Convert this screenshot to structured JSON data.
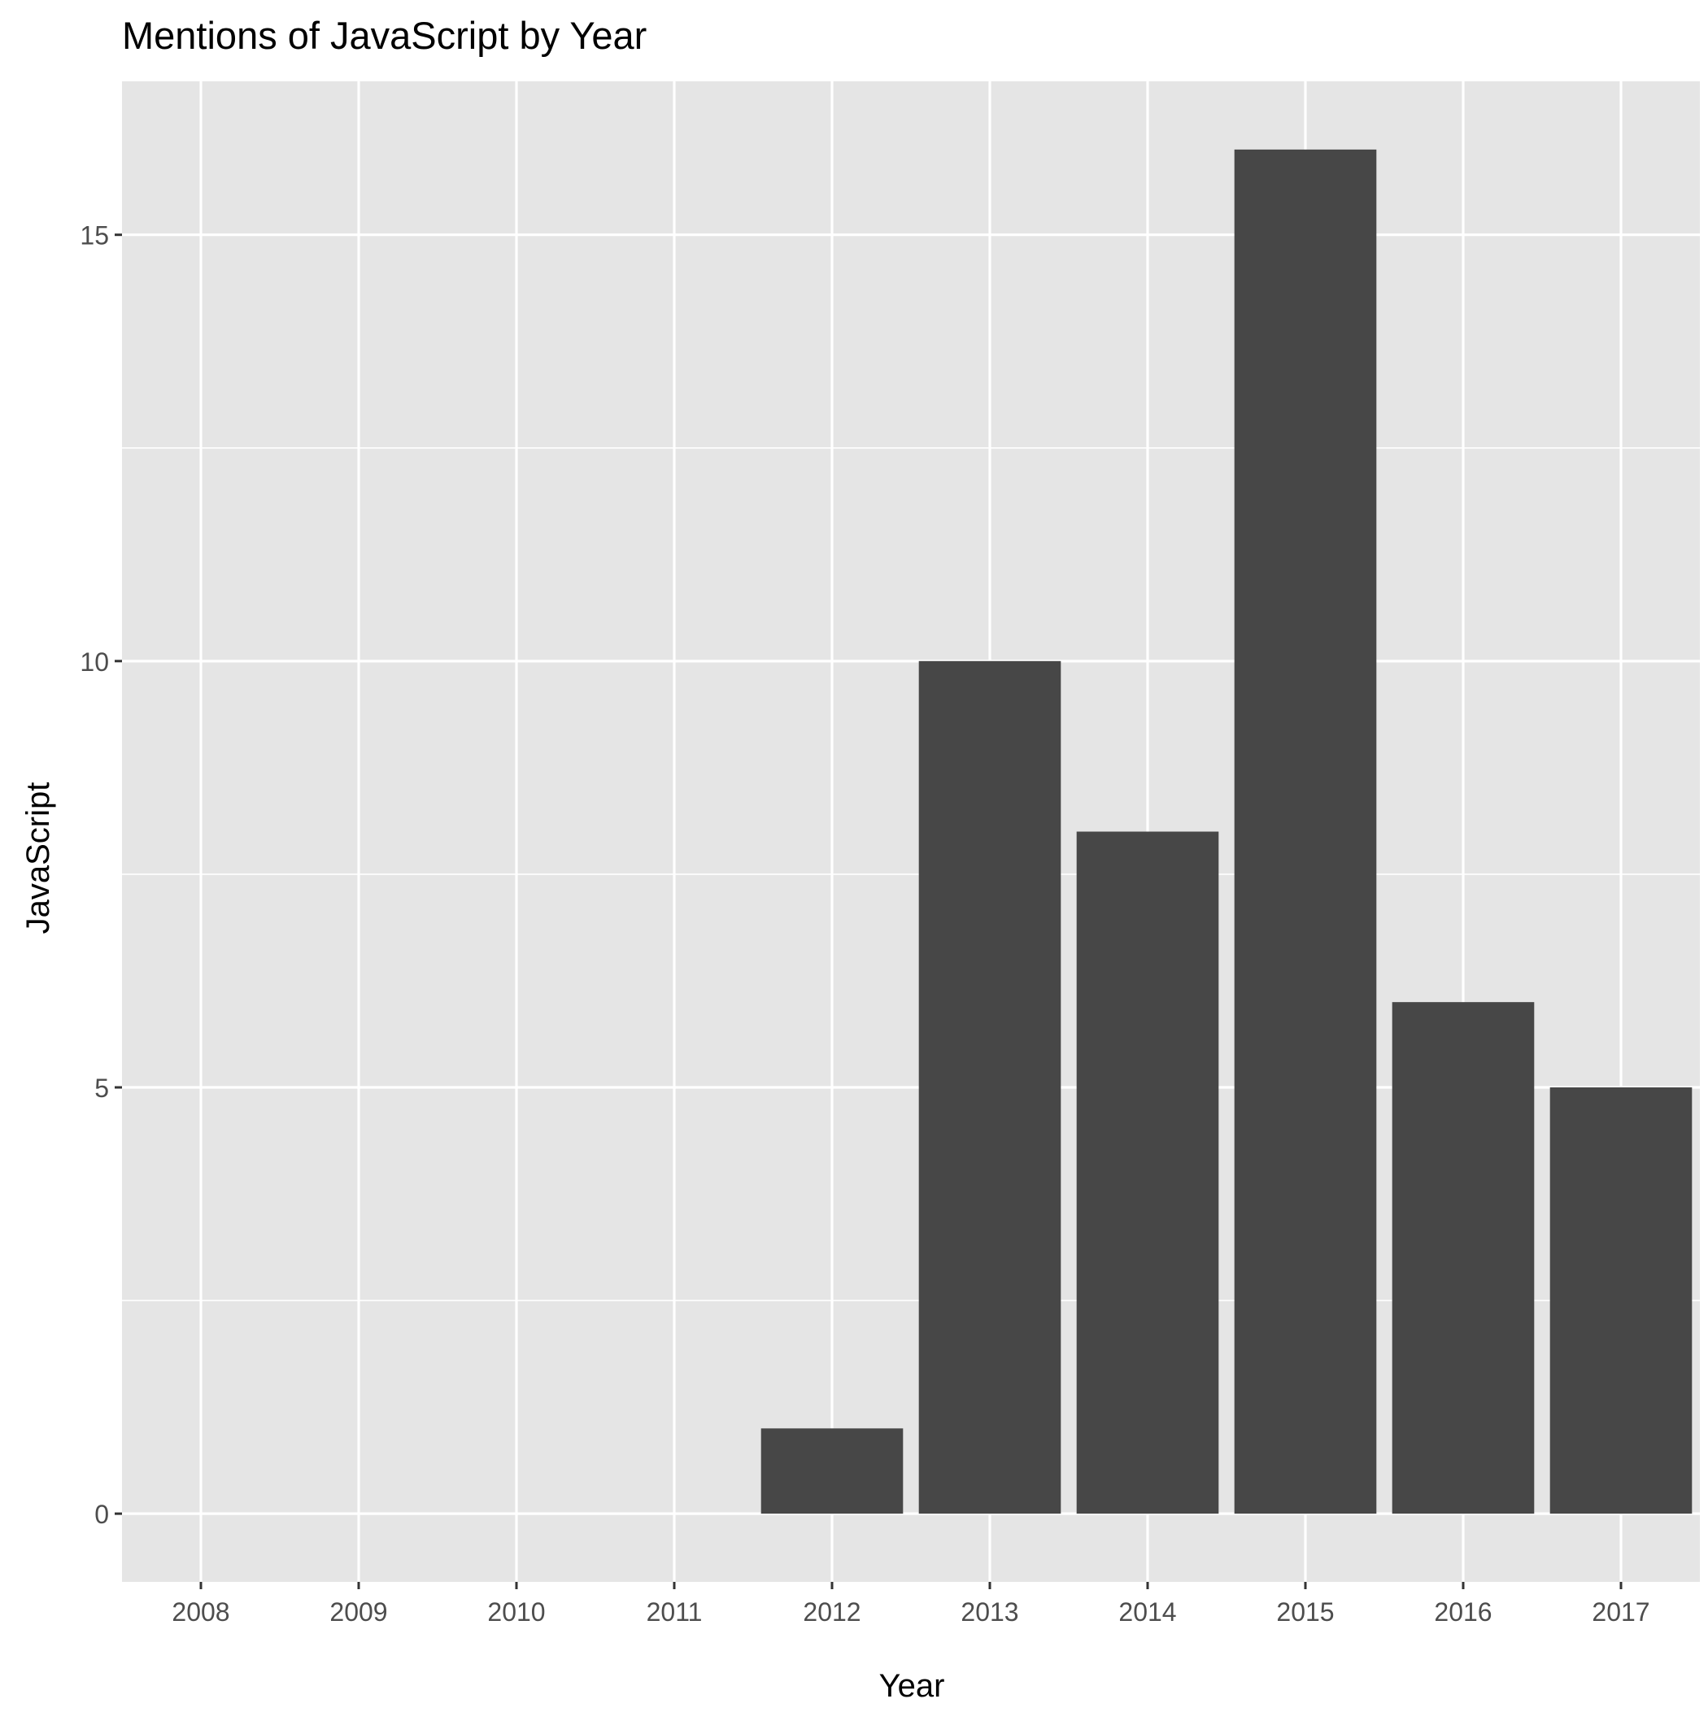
{
  "chart_data": {
    "type": "bar",
    "title": "Mentions of JavaScript by Year",
    "xlabel": "Year",
    "ylabel": "JavaScript",
    "categories": [
      "2008",
      "2009",
      "2010",
      "2011",
      "2012",
      "2013",
      "2014",
      "2015",
      "2016",
      "2017"
    ],
    "values": [
      0,
      0,
      0,
      0,
      1,
      10,
      8,
      16,
      6,
      5
    ],
    "ylim": [
      -0.8,
      16.8
    ],
    "yticks": [
      0,
      5,
      10,
      15
    ],
    "grid": true,
    "legend": "none",
    "colors": {
      "bar": "#474747",
      "panel": "#e5e5e5",
      "grid": "#ffffff",
      "text": "#4d4d4d",
      "title": "#000000"
    }
  }
}
